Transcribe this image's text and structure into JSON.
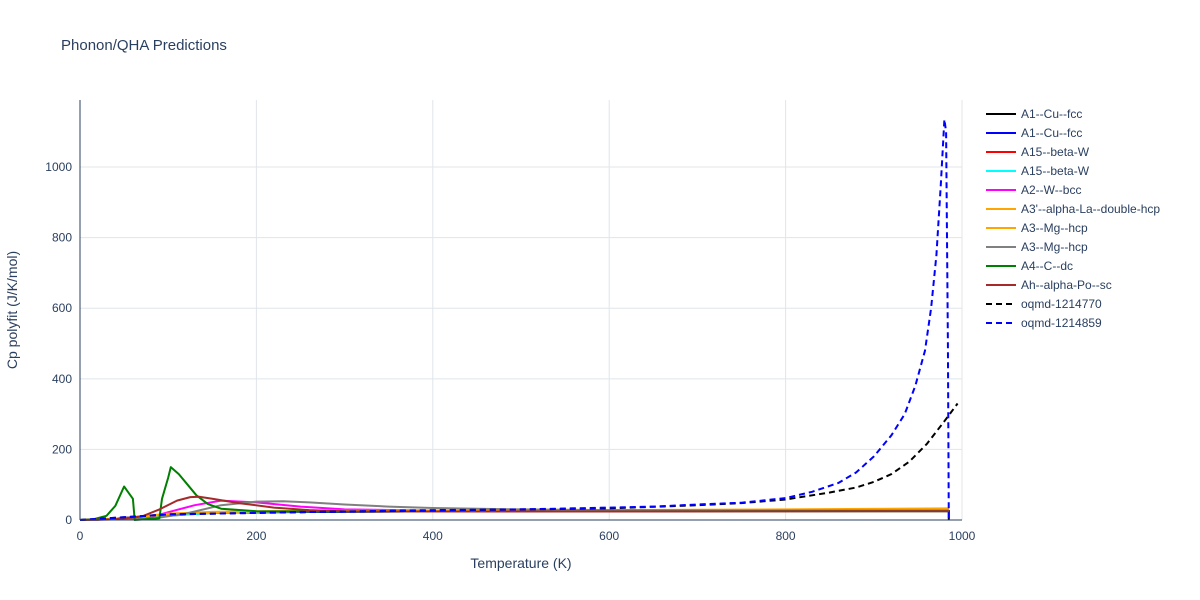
{
  "chart_data": {
    "type": "line",
    "title": "Phonon/QHA Predictions",
    "xlabel": "Temperature (K)",
    "ylabel": "Cp polyfit (J/K/mol)",
    "xlim": [
      0,
      1000
    ],
    "ylim": [
      0,
      1190
    ],
    "xticks": [
      0,
      200,
      400,
      600,
      800,
      1000
    ],
    "yticks": [
      0,
      200,
      400,
      600,
      800,
      1000
    ],
    "grid": true,
    "legend_position": "right",
    "series": [
      {
        "name": "A1--Cu--fcc",
        "color": "#000000",
        "dash": false,
        "points": [
          [
            0,
            0
          ],
          [
            20,
            1
          ],
          [
            40,
            4
          ],
          [
            60,
            8
          ],
          [
            80,
            12
          ],
          [
            100,
            16
          ],
          [
            150,
            20
          ],
          [
            200,
            22
          ],
          [
            300,
            23.5
          ],
          [
            400,
            24.3
          ],
          [
            600,
            25
          ],
          [
            800,
            25.5
          ],
          [
            985,
            26
          ],
          [
            985,
            0
          ]
        ]
      },
      {
        "name": "A1--Cu--fcc",
        "color": "#0000ff",
        "dash": false,
        "points": [
          [
            0,
            0
          ],
          [
            20,
            1
          ],
          [
            40,
            4
          ],
          [
            60,
            8
          ],
          [
            80,
            12
          ],
          [
            100,
            16
          ],
          [
            150,
            20
          ],
          [
            200,
            22
          ],
          [
            300,
            23.5
          ],
          [
            400,
            24.5
          ],
          [
            600,
            25.2
          ],
          [
            800,
            25.8
          ],
          [
            985,
            26.5
          ]
        ]
      },
      {
        "name": "A15--beta-W",
        "color": "#ff0000",
        "dash": false,
        "points": [
          [
            0,
            0
          ],
          [
            50,
            3
          ],
          [
            100,
            12
          ],
          [
            150,
            20
          ],
          [
            200,
            23
          ],
          [
            300,
            24.5
          ],
          [
            400,
            25
          ],
          [
            600,
            25.5
          ],
          [
            800,
            26
          ],
          [
            985,
            26.5
          ]
        ]
      },
      {
        "name": "A15--beta-W",
        "color": "#00ffff",
        "dash": false,
        "points": [
          [
            0,
            0
          ],
          [
            50,
            3
          ],
          [
            100,
            12
          ],
          [
            150,
            20
          ],
          [
            200,
            23
          ],
          [
            300,
            24.5
          ],
          [
            400,
            25
          ],
          [
            600,
            25.5
          ],
          [
            800,
            26
          ],
          [
            985,
            26.5
          ]
        ]
      },
      {
        "name": "A2--W--bcc",
        "color": "#ff00ff",
        "dash": false,
        "points": [
          [
            0,
            0
          ],
          [
            50,
            2
          ],
          [
            80,
            8
          ],
          [
            100,
            22
          ],
          [
            130,
            42
          ],
          [
            160,
            55
          ],
          [
            200,
            50
          ],
          [
            250,
            38
          ],
          [
            300,
            30
          ],
          [
            400,
            27
          ],
          [
            600,
            26
          ],
          [
            800,
            26
          ],
          [
            985,
            26
          ]
        ]
      },
      {
        "name": "A3'--alpha-La--double-hcp",
        "color": "#ffa500",
        "dash": false,
        "points": [
          [
            0,
            0
          ],
          [
            50,
            5
          ],
          [
            100,
            18
          ],
          [
            150,
            23
          ],
          [
            200,
            25
          ],
          [
            300,
            26
          ],
          [
            400,
            27
          ],
          [
            600,
            28
          ],
          [
            800,
            30
          ],
          [
            985,
            33
          ]
        ]
      },
      {
        "name": "A3--Mg--hcp",
        "color": "#ffa500",
        "dash": false,
        "points": [
          [
            0,
            0
          ],
          [
            50,
            4
          ],
          [
            100,
            16
          ],
          [
            150,
            22
          ],
          [
            200,
            24
          ],
          [
            300,
            25
          ],
          [
            400,
            26
          ],
          [
            600,
            27
          ],
          [
            800,
            28
          ],
          [
            985,
            30
          ]
        ]
      },
      {
        "name": "A3--Mg--hcp",
        "color": "#808080",
        "dash": false,
        "points": [
          [
            0,
            0
          ],
          [
            80,
            3
          ],
          [
            120,
            18
          ],
          [
            160,
            42
          ],
          [
            200,
            52
          ],
          [
            230,
            53
          ],
          [
            260,
            50
          ],
          [
            300,
            44
          ],
          [
            350,
            38
          ],
          [
            400,
            34
          ],
          [
            500,
            30
          ],
          [
            600,
            28
          ],
          [
            800,
            27
          ],
          [
            985,
            27
          ]
        ]
      },
      {
        "name": "A4--C--dc",
        "color": "#008000",
        "dash": false,
        "points": [
          [
            0,
            0
          ],
          [
            15,
            2
          ],
          [
            30,
            12
          ],
          [
            40,
            40
          ],
          [
            50,
            95
          ],
          [
            60,
            60
          ],
          [
            62,
            0
          ],
          [
            90,
            5
          ],
          [
            93,
            60
          ],
          [
            100,
            120
          ],
          [
            103,
            150
          ],
          [
            112,
            130
          ],
          [
            122,
            100
          ],
          [
            132,
            70
          ],
          [
            145,
            45
          ],
          [
            160,
            32
          ],
          [
            200,
            25
          ],
          [
            300,
            24
          ],
          [
            400,
            24
          ],
          [
            600,
            24.5
          ],
          [
            800,
            25
          ],
          [
            985,
            25
          ]
        ]
      },
      {
        "name": "Ah--alpha-Po--sc",
        "color": "#a52a2a",
        "dash": false,
        "points": [
          [
            0,
            0
          ],
          [
            40,
            2
          ],
          [
            70,
            10
          ],
          [
            90,
            30
          ],
          [
            110,
            55
          ],
          [
            125,
            65
          ],
          [
            135,
            66
          ],
          [
            150,
            60
          ],
          [
            180,
            48
          ],
          [
            220,
            35
          ],
          [
            260,
            28
          ],
          [
            300,
            25
          ],
          [
            400,
            24
          ],
          [
            600,
            24
          ],
          [
            800,
            24.5
          ],
          [
            985,
            25
          ]
        ]
      },
      {
        "name": "oqmd-1214770",
        "color": "#000000",
        "dash": true,
        "points": [
          [
            0,
            0
          ],
          [
            100,
            16
          ],
          [
            200,
            20
          ],
          [
            300,
            24
          ],
          [
            400,
            27
          ],
          [
            500,
            30
          ],
          [
            600,
            33
          ],
          [
            700,
            42
          ],
          [
            750,
            48
          ],
          [
            800,
            58
          ],
          [
            850,
            78
          ],
          [
            880,
            92
          ],
          [
            900,
            108
          ],
          [
            920,
            130
          ],
          [
            940,
            165
          ],
          [
            960,
            215
          ],
          [
            980,
            280
          ],
          [
            995,
            330
          ]
        ]
      },
      {
        "name": "oqmd-1214859",
        "color": "#0000ff",
        "dash": true,
        "points": [
          [
            0,
            0
          ],
          [
            100,
            16
          ],
          [
            200,
            20
          ],
          [
            300,
            24
          ],
          [
            400,
            28
          ],
          [
            500,
            30
          ],
          [
            600,
            35
          ],
          [
            650,
            38
          ],
          [
            700,
            44
          ],
          [
            750,
            49
          ],
          [
            800,
            62
          ],
          [
            830,
            80
          ],
          [
            860,
            105
          ],
          [
            880,
            135
          ],
          [
            900,
            180
          ],
          [
            920,
            240
          ],
          [
            935,
            300
          ],
          [
            947,
            380
          ],
          [
            958,
            480
          ],
          [
            965,
            600
          ],
          [
            971,
            750
          ],
          [
            976,
            950
          ],
          [
            980,
            1135
          ],
          [
            982,
            1100
          ],
          [
            984,
            500
          ],
          [
            985,
            0
          ]
        ]
      }
    ]
  }
}
